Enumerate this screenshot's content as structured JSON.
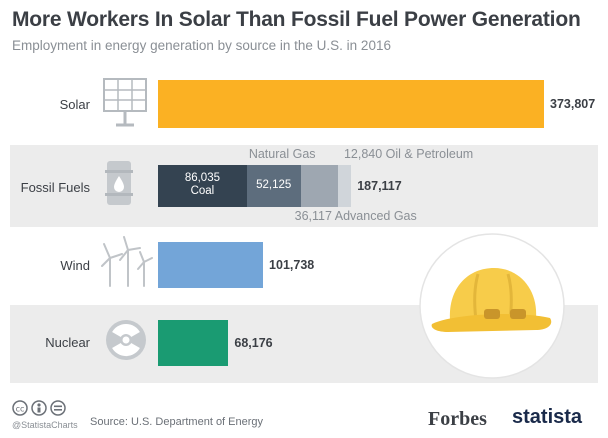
{
  "chart_data": {
    "type": "bar",
    "title": "More Workers In Solar Than Fossil Fuel Power Generation",
    "subtitle": "Employment in energy generation by source in the U.S. in 2016",
    "categories": [
      "Solar",
      "Fossil Fuels",
      "Wind",
      "Nuclear"
    ],
    "values": [
      373807,
      187117,
      101738,
      68176
    ],
    "value_labels": [
      "373,807",
      "187,117",
      "101,738",
      "68,176"
    ],
    "fossil_breakdown": [
      {
        "name": "Coal",
        "value": 86035,
        "label": "86,035"
      },
      {
        "name": "Natural Gas",
        "value": 52125,
        "label": "52,125"
      },
      {
        "name": "Advanced Gas",
        "value": 36117,
        "label": "36,117"
      },
      {
        "name": "Oil & Petroleum",
        "value": 12840,
        "label": "12,840"
      }
    ],
    "colors": {
      "solar": "#fbb123",
      "coal": "#344351",
      "natural_gas": "#5d6d7d",
      "advanced_gas": "#9ea7b1",
      "oil": "#d0d5da",
      "wind": "#73a5d8",
      "nuclear": "#1a9b72",
      "helmet": "#f7cc4a"
    },
    "grid": false,
    "legend": "none"
  },
  "footer": {
    "handle": "@StatistaCharts",
    "source": "Source: U.S. Department of Energy",
    "brand_forbes": "Forbes",
    "brand_statista": "statista",
    "license_icons": [
      "cc-icon",
      "by-icon",
      "nd-icon"
    ]
  }
}
